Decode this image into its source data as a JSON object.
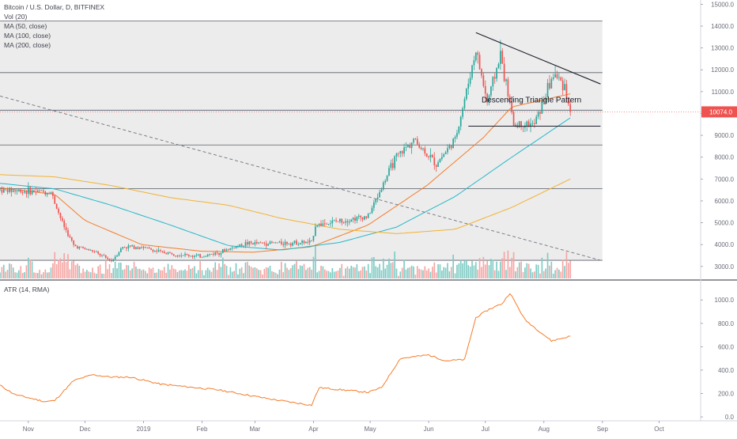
{
  "header": {
    "symbol_line": "Bitcoin / U.S. Dollar, D, BITFINEX",
    "indicators": [
      "Vol (20)",
      "MA (50, close)",
      "MA (100, close)",
      "MA (200, close)"
    ],
    "atr_label": "ATR (14, RMA)"
  },
  "colors": {
    "up": "#26a69a",
    "down": "#ef5350",
    "vol_up": "#80cbc4",
    "vol_down": "#f4a6a4",
    "ma50": "#f57c2a",
    "ma100": "#26b7c9",
    "ma200": "#f2b233",
    "atr": "#f57c2a",
    "price_tag": "#ef5350",
    "shade": "#ececec"
  },
  "chart_data": [
    {
      "type": "candlestick",
      "title": "Bitcoin / U.S. Dollar, D, BITFINEX",
      "y_axis_ticks": [
        3000,
        4000,
        5000,
        6000,
        7000,
        8000,
        9000,
        10000,
        11000,
        12000,
        13000,
        14000,
        15000
      ],
      "y_axis_tick_labels": [
        "3000.0",
        "4000.0",
        "5000.0",
        "6000.0",
        "7000.0",
        "8000.0",
        "9000.0",
        "10000.0",
        "11000.0",
        "12000.0",
        "13000.0",
        "14000.0",
        "15000.0"
      ],
      "ylim": [
        2450,
        15050
      ],
      "x_range": [
        "2018-10-17",
        "2019-10-23"
      ],
      "x_tick_labels": [
        {
          "label": "Nov",
          "date": "2018-11-01"
        },
        {
          "label": "Dec",
          "date": "2018-12-01"
        },
        {
          "label": "2019",
          "date": "2019-01-01"
        },
        {
          "label": "Feb",
          "date": "2019-02-01"
        },
        {
          "label": "Mar",
          "date": "2019-03-01"
        },
        {
          "label": "Apr",
          "date": "2019-04-01"
        },
        {
          "label": "May",
          "date": "2019-05-01"
        },
        {
          "label": "Jun",
          "date": "2019-06-01"
        },
        {
          "label": "Jul",
          "date": "2019-07-01"
        },
        {
          "label": "Aug",
          "date": "2019-08-01"
        },
        {
          "label": "Sep",
          "date": "2019-09-01"
        },
        {
          "label": "Oct",
          "date": "2019-10-01"
        }
      ],
      "last_price": 10074.0,
      "last_price_label": "10074.0",
      "grid": false,
      "horizontal_levels": [
        3280,
        6560,
        8560,
        10150,
        11870,
        14230
      ],
      "shaded_range": {
        "start": "2018-10-17",
        "end": "2019-09-01",
        "low": 3280,
        "high": 14230
      },
      "annotations": [
        {
          "text": "Descending Triangle Pattern",
          "date": "2019-06-29",
          "price": 10650
        }
      ],
      "trend_lines": [
        {
          "name": "triangle-top",
          "style": "solid",
          "points": [
            {
              "date": "2019-06-26",
              "price": 13700
            },
            {
              "date": "2019-08-31",
              "price": 11350
            }
          ]
        },
        {
          "name": "triangle-bottom",
          "style": "solid",
          "points": [
            {
              "date": "2019-06-22",
              "price": 9420
            },
            {
              "date": "2019-08-31",
              "price": 9420
            }
          ]
        },
        {
          "name": "long-term-downtrend",
          "style": "dashed",
          "points": [
            {
              "date": "2018-10-17",
              "price": 10800
            },
            {
              "date": "2019-08-31",
              "price": 3280
            }
          ]
        }
      ],
      "price_keyframes": [
        {
          "date": "2018-10-17",
          "price": 6500
        },
        {
          "date": "2018-11-13",
          "price": 6400
        },
        {
          "date": "2018-11-19",
          "price": 5000
        },
        {
          "date": "2018-11-25",
          "price": 3950
        },
        {
          "date": "2018-12-05",
          "price": 3700
        },
        {
          "date": "2018-12-15",
          "price": 3250
        },
        {
          "date": "2018-12-21",
          "price": 3900
        },
        {
          "date": "2018-12-30",
          "price": 3900
        },
        {
          "date": "2019-01-10",
          "price": 3650
        },
        {
          "date": "2019-01-31",
          "price": 3450
        },
        {
          "date": "2019-02-10",
          "price": 3650
        },
        {
          "date": "2019-02-24",
          "price": 4050
        },
        {
          "date": "2019-03-31",
          "price": 4100
        },
        {
          "date": "2019-04-02",
          "price": 4900
        },
        {
          "date": "2019-04-30",
          "price": 5300
        },
        {
          "date": "2019-05-14",
          "price": 7900
        },
        {
          "date": "2019-05-24",
          "price": 8800
        },
        {
          "date": "2019-06-05",
          "price": 7700
        },
        {
          "date": "2019-06-15",
          "price": 8800
        },
        {
          "date": "2019-06-26",
          "price": 12900
        },
        {
          "date": "2019-07-02",
          "price": 10500
        },
        {
          "date": "2019-07-09",
          "price": 12700
        },
        {
          "date": "2019-07-16",
          "price": 9500
        },
        {
          "date": "2019-07-27",
          "price": 9500
        },
        {
          "date": "2019-08-06",
          "price": 11800
        },
        {
          "date": "2019-08-12",
          "price": 11300
        },
        {
          "date": "2019-08-15",
          "price": 10074
        }
      ],
      "moving_averages": [
        {
          "name": "MA (50, close)",
          "points": [
            {
              "date": "2018-10-17",
              "price": 6600
            },
            {
              "date": "2018-11-15",
              "price": 6300
            },
            {
              "date": "2018-12-01",
              "price": 5100
            },
            {
              "date": "2018-12-31",
              "price": 4000
            },
            {
              "date": "2019-01-31",
              "price": 3700
            },
            {
              "date": "2019-02-28",
              "price": 3650
            },
            {
              "date": "2019-03-31",
              "price": 3900
            },
            {
              "date": "2019-04-30",
              "price": 4900
            },
            {
              "date": "2019-05-31",
              "price": 6700
            },
            {
              "date": "2019-06-30",
              "price": 8900
            },
            {
              "date": "2019-07-15",
              "price": 10300
            },
            {
              "date": "2019-08-15",
              "price": 10900
            }
          ]
        },
        {
          "name": "MA (100, close)",
          "points": [
            {
              "date": "2018-10-17",
              "price": 6800
            },
            {
              "date": "2018-11-15",
              "price": 6550
            },
            {
              "date": "2018-12-15",
              "price": 5800
            },
            {
              "date": "2019-01-15",
              "price": 4900
            },
            {
              "date": "2019-02-15",
              "price": 3950
            },
            {
              "date": "2019-03-15",
              "price": 3750
            },
            {
              "date": "2019-04-15",
              "price": 4100
            },
            {
              "date": "2019-05-15",
              "price": 4800
            },
            {
              "date": "2019-06-15",
              "price": 6200
            },
            {
              "date": "2019-07-15",
              "price": 8000
            },
            {
              "date": "2019-08-15",
              "price": 9800
            }
          ]
        },
        {
          "name": "MA (200, close)",
          "points": [
            {
              "date": "2018-10-17",
              "price": 7200
            },
            {
              "date": "2018-11-15",
              "price": 7100
            },
            {
              "date": "2018-12-15",
              "price": 6700
            },
            {
              "date": "2019-01-15",
              "price": 6150
            },
            {
              "date": "2019-02-15",
              "price": 5800
            },
            {
              "date": "2019-03-15",
              "price": 5200
            },
            {
              "date": "2019-04-15",
              "price": 4700
            },
            {
              "date": "2019-05-15",
              "price": 4500
            },
            {
              "date": "2019-06-15",
              "price": 4700
            },
            {
              "date": "2019-07-15",
              "price": 5700
            },
            {
              "date": "2019-08-15",
              "price": 7000
            }
          ]
        }
      ]
    },
    {
      "type": "line",
      "title": "ATR (14, RMA)",
      "y_axis_ticks": [
        0,
        200,
        400,
        600,
        800,
        1000
      ],
      "y_axis_tick_labels": [
        "0.0",
        "200.0",
        "400.0",
        "600.0",
        "800.0",
        "1000.0"
      ],
      "ylim": [
        -20,
        1130
      ],
      "grid": false,
      "series": [
        {
          "points": [
            {
              "date": "2018-10-17",
              "value": 270
            },
            {
              "date": "2018-10-25",
              "value": 190
            },
            {
              "date": "2018-11-10",
              "value": 130
            },
            {
              "date": "2018-11-15",
              "value": 140
            },
            {
              "date": "2018-11-25",
              "value": 310
            },
            {
              "date": "2018-12-05",
              "value": 360
            },
            {
              "date": "2018-12-15",
              "value": 340
            },
            {
              "date": "2018-12-25",
              "value": 340
            },
            {
              "date": "2019-01-10",
              "value": 280
            },
            {
              "date": "2019-02-10",
              "value": 230
            },
            {
              "date": "2019-03-10",
              "value": 150
            },
            {
              "date": "2019-03-31",
              "value": 100
            },
            {
              "date": "2019-04-04",
              "value": 250
            },
            {
              "date": "2019-04-30",
              "value": 210
            },
            {
              "date": "2019-05-07",
              "value": 250
            },
            {
              "date": "2019-05-17",
              "value": 500
            },
            {
              "date": "2019-06-01",
              "value": 530
            },
            {
              "date": "2019-06-10",
              "value": 480
            },
            {
              "date": "2019-06-20",
              "value": 490
            },
            {
              "date": "2019-06-26",
              "value": 850
            },
            {
              "date": "2019-07-03",
              "value": 920
            },
            {
              "date": "2019-07-10",
              "value": 970
            },
            {
              "date": "2019-07-14",
              "value": 1060
            },
            {
              "date": "2019-07-22",
              "value": 830
            },
            {
              "date": "2019-07-29",
              "value": 740
            },
            {
              "date": "2019-08-05",
              "value": 650
            },
            {
              "date": "2019-08-15",
              "value": 690
            }
          ]
        }
      ]
    }
  ]
}
